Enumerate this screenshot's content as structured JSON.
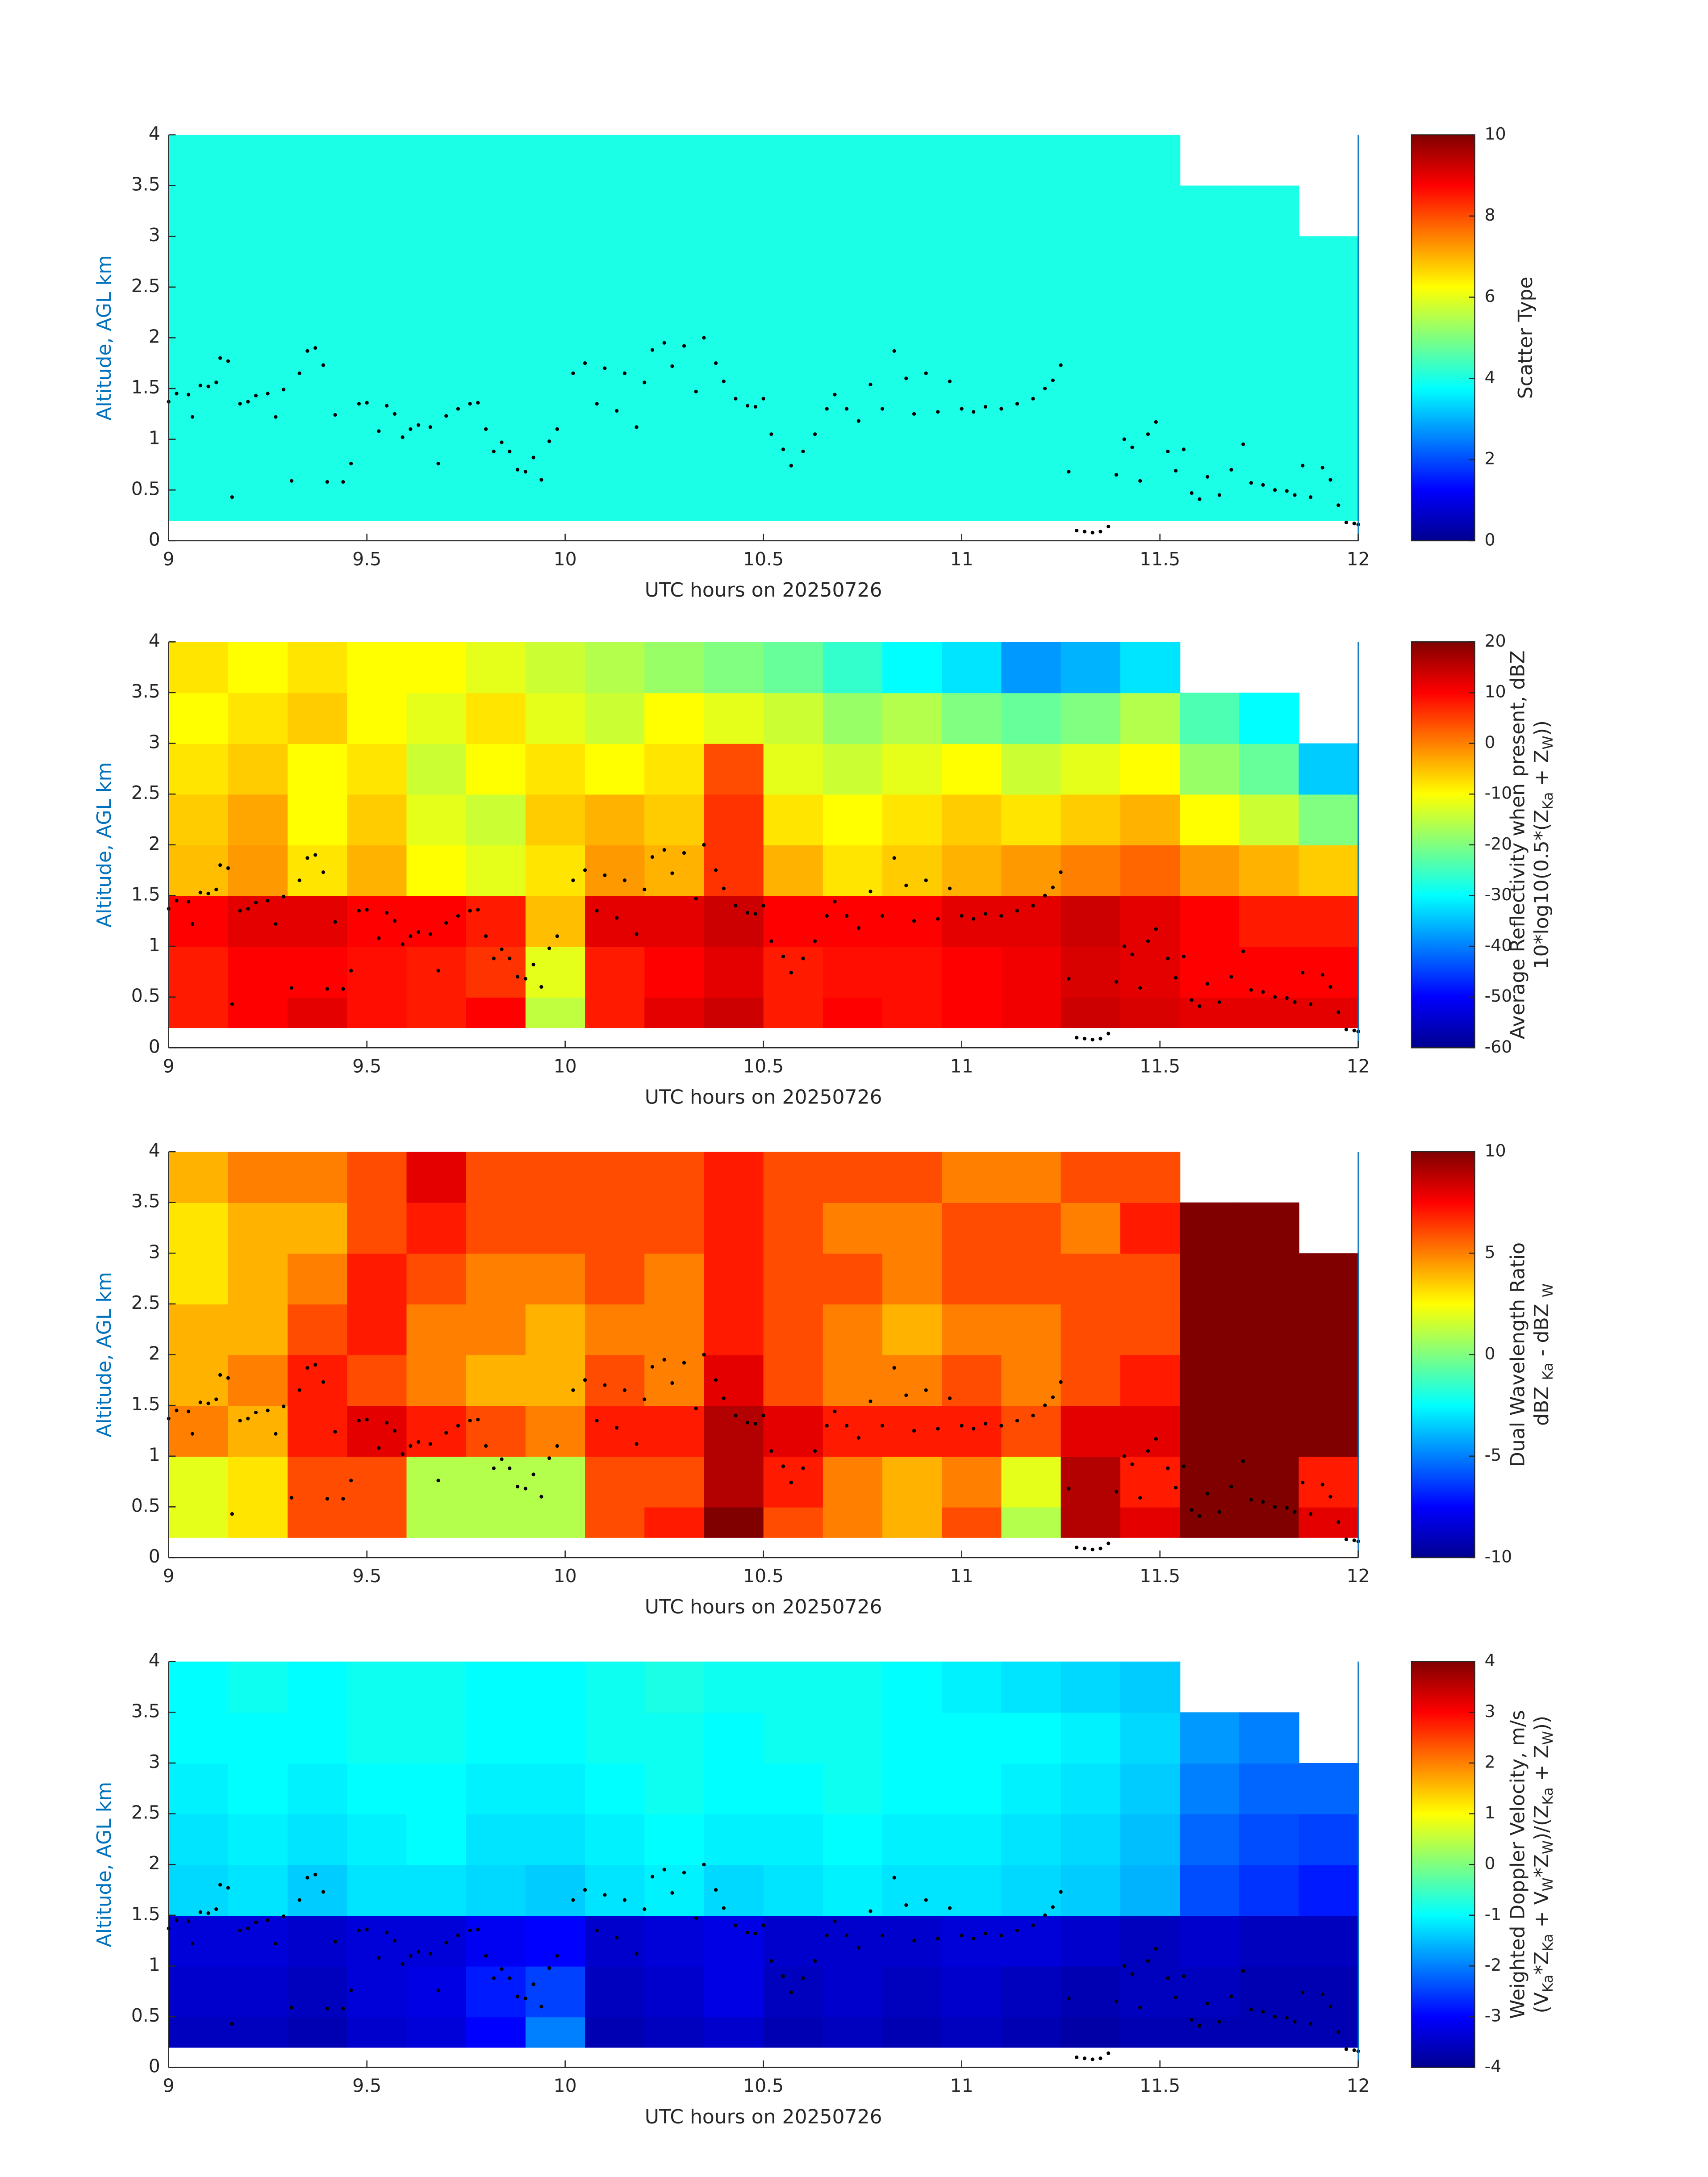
{
  "chart_data": [
    {
      "type": "heatmap",
      "colormap": "jet",
      "xlabel": "UTC hours on 20250726",
      "ylabel": "Altitude, AGL km",
      "clabel": [
        [
          "Scatter Type"
        ]
      ],
      "xlim": [
        9,
        12
      ],
      "ylim": [
        0,
        4
      ],
      "xticks": [
        9,
        9.5,
        10,
        10.5,
        11,
        11.5,
        12
      ],
      "yticks": [
        0,
        0.5,
        1,
        1.5,
        2,
        2.5,
        3,
        3.5,
        4
      ],
      "clim": [
        0,
        10
      ],
      "cticks": [
        0,
        2,
        4,
        6,
        8,
        10
      ],
      "time_bins": [
        9,
        9.15,
        9.3,
        9.45,
        9.6,
        9.75,
        9.9,
        10.05,
        10.2,
        10.35,
        10.5,
        10.65,
        10.8,
        10.95,
        11.1,
        11.25,
        11.4,
        11.55,
        11.7,
        11.85,
        12
      ],
      "alt_bins": [
        0.2,
        0.5,
        1,
        1.5,
        2,
        2.5,
        3,
        3.5,
        4
      ],
      "values": [
        [
          4,
          4,
          4,
          4,
          4,
          4,
          4,
          4,
          4,
          4,
          4,
          4,
          4,
          4,
          4,
          4,
          4,
          4,
          4,
          4
        ],
        [
          4,
          4,
          4,
          4,
          4,
          4,
          4,
          4,
          4,
          4,
          4,
          4,
          4,
          4,
          4,
          4,
          4,
          4,
          4,
          4
        ],
        [
          4,
          4,
          4,
          4,
          4,
          4,
          4,
          4,
          4,
          4,
          4,
          4,
          4,
          4,
          4,
          4,
          4,
          4,
          4,
          4
        ],
        [
          4,
          4,
          4,
          4,
          4,
          4,
          4,
          4,
          4,
          4,
          4,
          4,
          4,
          4,
          4,
          4,
          4,
          4,
          4,
          4
        ],
        [
          4,
          4,
          4,
          4,
          4,
          4,
          4,
          4,
          4,
          4,
          4,
          4,
          4,
          4,
          4,
          4,
          4,
          4,
          4,
          4
        ],
        [
          4,
          4,
          4,
          4,
          4,
          4,
          4,
          4,
          4,
          4,
          4,
          4,
          4,
          4,
          4,
          4,
          4,
          4,
          4,
          4
        ],
        [
          4,
          4,
          4,
          4,
          4,
          4,
          4,
          4,
          4,
          4,
          4,
          4,
          4,
          4,
          4,
          4,
          4,
          4,
          4,
          null
        ],
        [
          4,
          4,
          4,
          4,
          4,
          4,
          4,
          4,
          4,
          4,
          4,
          4,
          4,
          4,
          4,
          4,
          4,
          null,
          null,
          null
        ]
      ]
    },
    {
      "type": "heatmap",
      "colormap": "jet",
      "xlabel": "UTC hours on 20250726",
      "ylabel": "Altitude, AGL km",
      "clabel": [
        [
          "Average Reflectivity when present, dBZ"
        ],
        [
          "10*log10(0.5*(Z",
          "Ka",
          " + Z",
          "W",
          "))"
        ]
      ],
      "xlim": [
        9,
        12
      ],
      "ylim": [
        0,
        4
      ],
      "xticks": [
        9,
        9.5,
        10,
        10.5,
        11,
        11.5,
        12
      ],
      "yticks": [
        0,
        0.5,
        1,
        1.5,
        2,
        2.5,
        3,
        3.5,
        4
      ],
      "clim": [
        -60,
        20
      ],
      "cticks": [
        -60,
        -50,
        -40,
        -30,
        -20,
        -10,
        0,
        10,
        20
      ],
      "time_bins": [
        9,
        9.15,
        9.3,
        9.45,
        9.6,
        9.75,
        9.9,
        10.05,
        10.2,
        10.35,
        10.5,
        10.65,
        10.8,
        10.95,
        11.1,
        11.25,
        11.4,
        11.55,
        11.7,
        11.85,
        12
      ],
      "alt_bins": [
        0.2,
        0.5,
        1,
        1.5,
        2,
        2.5,
        3,
        3.5,
        4
      ],
      "values": [
        [
          8,
          10,
          12,
          9,
          8,
          10,
          -15,
          8,
          12,
          14,
          8,
          10,
          9,
          10,
          11,
          14,
          13,
          12,
          12,
          12
        ],
        [
          8,
          10,
          10,
          9,
          8,
          6,
          -12,
          8,
          10,
          12,
          8,
          9,
          9,
          10,
          11,
          13,
          12,
          10,
          10,
          10
        ],
        [
          10,
          12,
          12,
          10,
          10,
          8,
          -5,
          12,
          12,
          14,
          10,
          10,
          10,
          12,
          12,
          14,
          12,
          10,
          8,
          8
        ],
        [
          -5,
          -2,
          -8,
          -4,
          -10,
          -12,
          -8,
          -2,
          -4,
          6,
          -4,
          -8,
          -6,
          -4,
          -2,
          0,
          2,
          -2,
          -4,
          -6
        ],
        [
          -6,
          -3,
          -10,
          -6,
          -12,
          -14,
          -6,
          -4,
          -6,
          6,
          -8,
          -10,
          -8,
          -6,
          -8,
          -6,
          -4,
          -10,
          -14,
          -20
        ],
        [
          -8,
          -6,
          -10,
          -8,
          -14,
          -10,
          -8,
          -10,
          -8,
          4,
          -12,
          -14,
          -12,
          -10,
          -14,
          -12,
          -10,
          -18,
          -22,
          -34
        ],
        [
          -10,
          -8,
          -6,
          -10,
          -12,
          -8,
          -12,
          -14,
          -10,
          -12,
          -14,
          -18,
          -16,
          -20,
          -22,
          -20,
          -16,
          -24,
          -30,
          null
        ],
        [
          -8,
          -10,
          -8,
          -10,
          -10,
          -12,
          -14,
          -16,
          -18,
          -20,
          -22,
          -26,
          -30,
          -32,
          -38,
          -36,
          -32,
          null,
          null,
          null
        ]
      ]
    },
    {
      "type": "heatmap",
      "colormap": "jet",
      "xlabel": "UTC hours on 20250726",
      "ylabel": "Altitude, AGL km",
      "clabel": [
        [
          "Dual Wavelength Ratio"
        ],
        [
          "dBZ ",
          "Ka",
          " - dBZ ",
          "W"
        ]
      ],
      "xlim": [
        9,
        12
      ],
      "ylim": [
        0,
        4
      ],
      "xticks": [
        9,
        9.5,
        10,
        10.5,
        11,
        11.5,
        12
      ],
      "yticks": [
        0,
        0.5,
        1,
        1.5,
        2,
        2.5,
        3,
        3.5,
        4
      ],
      "clim": [
        -10,
        10
      ],
      "cticks": [
        -10,
        -5,
        0,
        5,
        10
      ],
      "time_bins": [
        9,
        9.15,
        9.3,
        9.45,
        9.6,
        9.75,
        9.9,
        10.05,
        10.2,
        10.35,
        10.5,
        10.65,
        10.8,
        10.95,
        11.1,
        11.25,
        11.4,
        11.55,
        11.7,
        11.85,
        12
      ],
      "alt_bins": [
        0.2,
        0.5,
        1,
        1.5,
        2,
        2.5,
        3,
        3.5,
        4
      ],
      "values": [
        [
          2,
          3,
          6,
          6,
          1,
          1,
          1,
          6,
          7,
          10,
          6,
          5,
          4,
          6,
          1,
          9,
          8,
          10,
          10,
          8
        ],
        [
          2,
          3,
          6,
          6,
          1,
          1,
          1,
          6,
          6,
          9,
          7,
          5,
          4,
          5,
          2,
          9,
          7,
          10,
          10,
          7
        ],
        [
          5,
          4,
          7,
          8,
          7,
          6,
          5,
          7,
          7,
          9,
          8,
          7,
          7,
          7,
          6,
          8,
          8,
          10,
          10,
          10
        ],
        [
          4,
          5,
          7,
          6,
          5,
          4,
          4,
          6,
          5,
          8,
          6,
          5,
          5,
          6,
          5,
          6,
          7,
          10,
          10,
          10
        ],
        [
          4,
          4,
          6,
          7,
          5,
          5,
          4,
          5,
          5,
          7,
          6,
          5,
          4,
          5,
          5,
          6,
          6,
          10,
          10,
          10
        ],
        [
          3,
          4,
          5,
          7,
          6,
          5,
          5,
          6,
          5,
          7,
          6,
          6,
          5,
          6,
          6,
          6,
          6,
          10,
          10,
          10
        ],
        [
          3,
          4,
          4,
          6,
          7,
          6,
          6,
          6,
          6,
          7,
          6,
          5,
          5,
          6,
          6,
          5,
          7,
          10,
          10,
          null
        ],
        [
          4,
          5,
          5,
          6,
          8,
          6,
          6,
          6,
          6,
          7,
          6,
          6,
          6,
          5,
          5,
          6,
          6,
          null,
          null,
          null
        ]
      ]
    },
    {
      "type": "heatmap",
      "colormap": "jet",
      "xlabel": "UTC hours on 20250726",
      "ylabel": "Altitude, AGL km",
      "clabel": [
        [
          "Weighted Doppler Velocity, m/s"
        ],
        [
          "(V",
          "Ka",
          "*Z",
          "Ka",
          " + V",
          "W",
          "*Z",
          "W",
          ")/(Z",
          "Ka",
          " + Z",
          "W",
          "))"
        ]
      ],
      "xlim": [
        9,
        12
      ],
      "ylim": [
        0,
        4
      ],
      "xticks": [
        9,
        9.5,
        10,
        10.5,
        11,
        11.5,
        12
      ],
      "yticks": [
        0,
        0.5,
        1,
        1.5,
        2,
        2.5,
        3,
        3.5,
        4
      ],
      "clim": [
        -4,
        4
      ],
      "cticks": [
        -4,
        -3,
        -2,
        -1,
        0,
        1,
        2,
        3,
        4
      ],
      "time_bins": [
        9,
        9.15,
        9.3,
        9.45,
        9.6,
        9.75,
        9.9,
        10.05,
        10.2,
        10.35,
        10.5,
        10.65,
        10.8,
        10.95,
        11.1,
        11.25,
        11.4,
        11.55,
        11.7,
        11.85,
        12
      ],
      "alt_bins": [
        0.2,
        0.5,
        1,
        1.5,
        2,
        2.5,
        3,
        3.5,
        4
      ],
      "values": [
        [
          -3.5,
          -3.5,
          -3.6,
          -3.4,
          -3.3,
          -3,
          -2,
          -3.6,
          -3.5,
          -3.4,
          -3.6,
          -3.5,
          -3.6,
          -3.5,
          -3.6,
          -3.7,
          -3.6,
          -3.6,
          -3.6,
          -3.6
        ],
        [
          -3.4,
          -3.4,
          -3.5,
          -3.3,
          -3.2,
          -2.8,
          -2.5,
          -3.5,
          -3.4,
          -3.2,
          -3.5,
          -3.4,
          -3.5,
          -3.4,
          -3.5,
          -3.6,
          -3.5,
          -3.5,
          -3.6,
          -3.6
        ],
        [
          -3.3,
          -3.3,
          -3.4,
          -3.3,
          -3.3,
          -3.1,
          -3,
          -3.4,
          -3.3,
          -3.2,
          -3.4,
          -3.4,
          -3.4,
          -3.3,
          -3.3,
          -3.4,
          -3.5,
          -3.4,
          -3.5,
          -3.5
        ],
        [
          -1.3,
          -1.2,
          -1.4,
          -1.2,
          -1.2,
          -1.3,
          -1.4,
          -1.2,
          -1.1,
          -1.3,
          -1.2,
          -1.1,
          -1.2,
          -1.2,
          -1.3,
          -1.4,
          -1.6,
          -2.4,
          -2.6,
          -2.8
        ],
        [
          -1.2,
          -1.1,
          -1.2,
          -1.1,
          -1,
          -1.2,
          -1.2,
          -1.1,
          -1,
          -1.1,
          -1.1,
          -1,
          -1.1,
          -1.1,
          -1.2,
          -1.3,
          -1.5,
          -2.2,
          -2.4,
          -2.5
        ],
        [
          -1.1,
          -1,
          -1.1,
          -1,
          -1,
          -1.1,
          -1.1,
          -1,
          -0.9,
          -1,
          -1,
          -0.9,
          -1,
          -1,
          -1.1,
          -1.2,
          -1.4,
          -2,
          -2.2,
          -2.2
        ],
        [
          -1,
          -1,
          -1,
          -0.9,
          -0.9,
          -1,
          -1,
          -0.9,
          -0.9,
          -1,
          -0.9,
          -0.9,
          -1,
          -1,
          -1,
          -1.1,
          -1.3,
          -1.8,
          -2,
          null
        ],
        [
          -1,
          -0.9,
          -1,
          -0.9,
          -0.9,
          -1,
          -1,
          -0.9,
          -0.8,
          -0.9,
          -0.9,
          -0.9,
          -1,
          -1.1,
          -1.2,
          -1.3,
          -1.4,
          null,
          null,
          null
        ]
      ]
    }
  ],
  "cloud_base": {
    "x": [
      9.0,
      9.02,
      9.05,
      9.06,
      9.08,
      9.1,
      9.12,
      9.13,
      9.15,
      9.16,
      9.18,
      9.2,
      9.22,
      9.25,
      9.27,
      9.29,
      9.31,
      9.33,
      9.35,
      9.37,
      9.39,
      9.4,
      9.42,
      9.44,
      9.46,
      9.48,
      9.5,
      9.53,
      9.55,
      9.57,
      9.59,
      9.61,
      9.63,
      9.66,
      9.68,
      9.7,
      9.73,
      9.76,
      9.78,
      9.8,
      9.82,
      9.84,
      9.86,
      9.88,
      9.9,
      9.92,
      9.94,
      9.96,
      9.98,
      10.02,
      10.05,
      10.08,
      10.1,
      10.13,
      10.15,
      10.18,
      10.2,
      10.22,
      10.25,
      10.27,
      10.3,
      10.33,
      10.35,
      10.38,
      10.4,
      10.43,
      10.46,
      10.48,
      10.5,
      10.52,
      10.55,
      10.57,
      10.6,
      10.63,
      10.66,
      10.68,
      10.71,
      10.74,
      10.77,
      10.8,
      10.83,
      10.86,
      10.88,
      10.91,
      10.94,
      10.97,
      11.0,
      11.03,
      11.06,
      11.1,
      11.14,
      11.18,
      11.21,
      11.23,
      11.25,
      11.27,
      11.29,
      11.31,
      11.33,
      11.35,
      11.37,
      11.39,
      11.41,
      11.43,
      11.45,
      11.47,
      11.49,
      11.52,
      11.54,
      11.56,
      11.58,
      11.6,
      11.62,
      11.65,
      11.68,
      11.71,
      11.73,
      11.76,
      11.79,
      11.82,
      11.84,
      11.86,
      11.88,
      11.91,
      11.93,
      11.95,
      11.97,
      11.99,
      12.0
    ],
    "y": [
      1.37,
      1.45,
      1.44,
      1.22,
      1.53,
      1.52,
      1.56,
      1.8,
      1.77,
      0.43,
      1.35,
      1.37,
      1.43,
      1.45,
      1.22,
      1.49,
      0.59,
      1.65,
      1.87,
      1.9,
      1.73,
      0.58,
      1.24,
      0.58,
      0.76,
      1.35,
      1.36,
      1.08,
      1.33,
      1.25,
      1.02,
      1.1,
      1.14,
      1.12,
      0.76,
      1.23,
      1.3,
      1.35,
      1.36,
      1.1,
      0.88,
      0.97,
      0.88,
      0.7,
      0.68,
      0.82,
      0.6,
      0.98,
      1.1,
      1.65,
      1.75,
      1.35,
      1.7,
      1.28,
      1.65,
      1.12,
      1.56,
      1.88,
      1.95,
      1.72,
      1.92,
      1.47,
      2.0,
      1.75,
      1.57,
      1.4,
      1.33,
      1.32,
      1.4,
      1.05,
      0.9,
      0.74,
      0.88,
      1.05,
      1.3,
      1.44,
      1.3,
      1.18,
      1.54,
      1.3,
      1.87,
      1.6,
      1.25,
      1.65,
      1.27,
      1.57,
      1.3,
      1.27,
      1.32,
      1.3,
      1.35,
      1.4,
      1.5,
      1.58,
      1.73,
      0.68,
      0.1,
      0.09,
      0.08,
      0.09,
      0.14,
      0.65,
      1.0,
      0.92,
      0.59,
      1.05,
      1.17,
      0.88,
      0.69,
      0.9,
      0.47,
      0.41,
      0.63,
      0.45,
      0.7,
      0.95,
      0.57,
      0.55,
      0.5,
      0.49,
      0.45,
      0.74,
      0.43,
      0.72,
      0.6,
      0.35,
      0.18,
      0.17,
      0.16
    ]
  }
}
